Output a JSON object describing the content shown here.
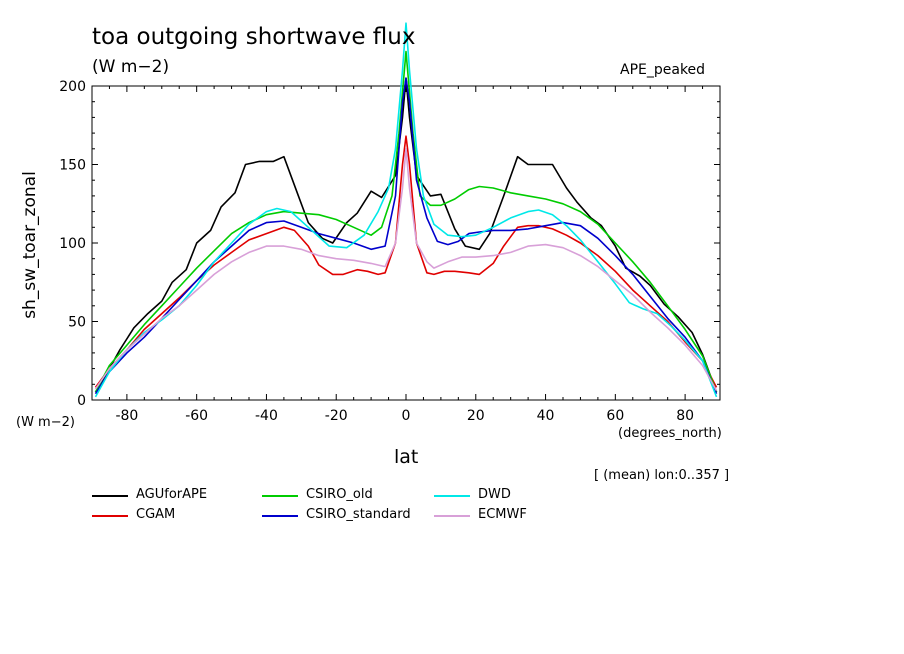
{
  "chart_data": {
    "type": "line",
    "title": "toa outgoing shortwave flux",
    "units": "(W m−2)",
    "experiment": "APE_peaked",
    "xlabel": "lat",
    "xunits": "(degrees_north)",
    "ylabel": "sh_sw_toar_zonal",
    "yunits": "(W m−2)",
    "note": "[ (mean) lon:0..357 ]",
    "xlim": [
      -90,
      90
    ],
    "ylim": [
      0,
      200
    ],
    "xticks": [
      "-80",
      "-60",
      "-40",
      "-20",
      "0",
      "20",
      "40",
      "60",
      "80"
    ],
    "yticks": [
      "0",
      "50",
      "100",
      "150",
      "200"
    ],
    "grid": false,
    "legend_position": "bottom",
    "series": [
      {
        "name": "AGUforAPE",
        "color": "#000000",
        "points": [
          [
            -89,
            5
          ],
          [
            -85,
            20
          ],
          [
            -82,
            32
          ],
          [
            -78,
            46
          ],
          [
            -74,
            55
          ],
          [
            -70,
            63
          ],
          [
            -67,
            75
          ],
          [
            -63,
            83
          ],
          [
            -60,
            100
          ],
          [
            -56,
            108
          ],
          [
            -53,
            123
          ],
          [
            -49,
            132
          ],
          [
            -46,
            150
          ],
          [
            -42,
            152
          ],
          [
            -38,
            152
          ],
          [
            -35,
            155
          ],
          [
            -31,
            131
          ],
          [
            -28,
            113
          ],
          [
            -24,
            103
          ],
          [
            -21,
            100
          ],
          [
            -17,
            113
          ],
          [
            -14,
            119
          ],
          [
            -10,
            133
          ],
          [
            -7,
            129
          ],
          [
            -3,
            143
          ],
          [
            -1,
            180
          ],
          [
            0,
            205
          ],
          [
            1,
            180
          ],
          [
            3,
            143
          ],
          [
            7,
            130
          ],
          [
            10,
            131
          ],
          [
            14,
            109
          ],
          [
            17,
            98
          ],
          [
            21,
            96
          ],
          [
            24,
            106
          ],
          [
            28,
            130
          ],
          [
            32,
            155
          ],
          [
            35,
            150
          ],
          [
            38,
            150
          ],
          [
            42,
            150
          ],
          [
            46,
            135
          ],
          [
            49,
            126
          ],
          [
            53,
            116
          ],
          [
            56,
            111
          ],
          [
            60,
            98
          ],
          [
            63,
            84
          ],
          [
            67,
            79
          ],
          [
            70,
            73
          ],
          [
            74,
            61
          ],
          [
            78,
            53
          ],
          [
            82,
            43
          ],
          [
            85,
            29
          ],
          [
            89,
            5
          ]
        ]
      },
      {
        "name": "CGAM",
        "color": "#e00000",
        "points": [
          [
            -89,
            8
          ],
          [
            -85,
            20
          ],
          [
            -80,
            32
          ],
          [
            -75,
            45
          ],
          [
            -70,
            55
          ],
          [
            -65,
            65
          ],
          [
            -60,
            76
          ],
          [
            -55,
            86
          ],
          [
            -50,
            94
          ],
          [
            -45,
            102
          ],
          [
            -40,
            106
          ],
          [
            -35,
            110
          ],
          [
            -32,
            108
          ],
          [
            -28,
            98
          ],
          [
            -25,
            86
          ],
          [
            -21,
            80
          ],
          [
            -18,
            80
          ],
          [
            -14,
            83
          ],
          [
            -11,
            82
          ],
          [
            -8,
            80
          ],
          [
            -6,
            81
          ],
          [
            -3,
            100
          ],
          [
            -1,
            150
          ],
          [
            0,
            168
          ],
          [
            1,
            150
          ],
          [
            3,
            100
          ],
          [
            6,
            81
          ],
          [
            8,
            80
          ],
          [
            11,
            82
          ],
          [
            14,
            82
          ],
          [
            18,
            81
          ],
          [
            21,
            80
          ],
          [
            25,
            87
          ],
          [
            28,
            98
          ],
          [
            32,
            110
          ],
          [
            35,
            111
          ],
          [
            38,
            111
          ],
          [
            42,
            109
          ],
          [
            46,
            105
          ],
          [
            50,
            100
          ],
          [
            55,
            92
          ],
          [
            60,
            82
          ],
          [
            65,
            70
          ],
          [
            70,
            60
          ],
          [
            75,
            50
          ],
          [
            80,
            37
          ],
          [
            85,
            25
          ],
          [
            89,
            8
          ]
        ]
      },
      {
        "name": "CSIRO_old",
        "color": "#00cc00",
        "points": [
          [
            -89,
            5
          ],
          [
            -85,
            22
          ],
          [
            -80,
            35
          ],
          [
            -75,
            48
          ],
          [
            -70,
            60
          ],
          [
            -65,
            72
          ],
          [
            -60,
            84
          ],
          [
            -55,
            95
          ],
          [
            -50,
            106
          ],
          [
            -45,
            113
          ],
          [
            -40,
            118
          ],
          [
            -35,
            120
          ],
          [
            -30,
            119
          ],
          [
            -25,
            118
          ],
          [
            -20,
            115
          ],
          [
            -15,
            110
          ],
          [
            -10,
            105
          ],
          [
            -7,
            110
          ],
          [
            -4,
            130
          ],
          [
            -2,
            170
          ],
          [
            0,
            222
          ],
          [
            2,
            170
          ],
          [
            4,
            130
          ],
          [
            7,
            124
          ],
          [
            10,
            124
          ],
          [
            14,
            128
          ],
          [
            18,
            134
          ],
          [
            21,
            136
          ],
          [
            25,
            135
          ],
          [
            30,
            132
          ],
          [
            35,
            130
          ],
          [
            40,
            128
          ],
          [
            45,
            125
          ],
          [
            50,
            120
          ],
          [
            55,
            112
          ],
          [
            60,
            100
          ],
          [
            65,
            88
          ],
          [
            70,
            75
          ],
          [
            75,
            60
          ],
          [
            80,
            45
          ],
          [
            85,
            28
          ],
          [
            89,
            5
          ]
        ]
      },
      {
        "name": "CSIRO_standard",
        "color": "#0000cc",
        "points": [
          [
            -89,
            4
          ],
          [
            -85,
            18
          ],
          [
            -80,
            30
          ],
          [
            -75,
            40
          ],
          [
            -70,
            52
          ],
          [
            -65,
            64
          ],
          [
            -60,
            76
          ],
          [
            -55,
            88
          ],
          [
            -50,
            98
          ],
          [
            -45,
            108
          ],
          [
            -40,
            113
          ],
          [
            -35,
            114
          ],
          [
            -30,
            110
          ],
          [
            -25,
            106
          ],
          [
            -20,
            103
          ],
          [
            -15,
            100
          ],
          [
            -10,
            96
          ],
          [
            -6,
            98
          ],
          [
            -3,
            130
          ],
          [
            -1,
            190
          ],
          [
            0,
            205
          ],
          [
            1,
            190
          ],
          [
            3,
            140
          ],
          [
            6,
            116
          ],
          [
            9,
            101
          ],
          [
            12,
            99
          ],
          [
            15,
            101
          ],
          [
            18,
            106
          ],
          [
            21,
            107
          ],
          [
            25,
            108
          ],
          [
            30,
            108
          ],
          [
            35,
            109
          ],
          [
            40,
            111
          ],
          [
            45,
            113
          ],
          [
            50,
            111
          ],
          [
            55,
            103
          ],
          [
            60,
            92
          ],
          [
            65,
            80
          ],
          [
            70,
            66
          ],
          [
            75,
            52
          ],
          [
            80,
            40
          ],
          [
            85,
            25
          ],
          [
            89,
            4
          ]
        ]
      },
      {
        "name": "DWD",
        "color": "#00e8e8",
        "points": [
          [
            -89,
            2
          ],
          [
            -85,
            18
          ],
          [
            -80,
            32
          ],
          [
            -75,
            43
          ],
          [
            -70,
            51
          ],
          [
            -65,
            60
          ],
          [
            -60,
            73
          ],
          [
            -55,
            88
          ],
          [
            -50,
            100
          ],
          [
            -45,
            112
          ],
          [
            -40,
            120
          ],
          [
            -37,
            122
          ],
          [
            -33,
            120
          ],
          [
            -28,
            110
          ],
          [
            -22,
            98
          ],
          [
            -17,
            97
          ],
          [
            -12,
            105
          ],
          [
            -8,
            120
          ],
          [
            -5,
            135
          ],
          [
            -3,
            160
          ],
          [
            -1,
            210
          ],
          [
            0,
            240
          ],
          [
            1,
            210
          ],
          [
            3,
            160
          ],
          [
            5,
            130
          ],
          [
            8,
            112
          ],
          [
            12,
            105
          ],
          [
            16,
            104
          ],
          [
            20,
            105
          ],
          [
            25,
            110
          ],
          [
            30,
            116
          ],
          [
            35,
            120
          ],
          [
            38,
            121
          ],
          [
            42,
            118
          ],
          [
            46,
            111
          ],
          [
            50,
            102
          ],
          [
            55,
            88
          ],
          [
            60,
            74
          ],
          [
            64,
            62
          ],
          [
            68,
            58
          ],
          [
            72,
            55
          ],
          [
            76,
            47
          ],
          [
            80,
            38
          ],
          [
            85,
            25
          ],
          [
            89,
            2
          ]
        ]
      },
      {
        "name": "ECMWF",
        "color": "#d8a0d8",
        "points": [
          [
            -89,
            7
          ],
          [
            -85,
            20
          ],
          [
            -80,
            32
          ],
          [
            -75,
            42
          ],
          [
            -70,
            52
          ],
          [
            -65,
            60
          ],
          [
            -60,
            70
          ],
          [
            -55,
            80
          ],
          [
            -50,
            88
          ],
          [
            -45,
            94
          ],
          [
            -40,
            98
          ],
          [
            -35,
            98
          ],
          [
            -30,
            96
          ],
          [
            -25,
            92
          ],
          [
            -20,
            90
          ],
          [
            -15,
            89
          ],
          [
            -10,
            87
          ],
          [
            -6,
            85
          ],
          [
            -3,
            100
          ],
          [
            -1,
            135
          ],
          [
            0,
            160
          ],
          [
            1,
            135
          ],
          [
            3,
            100
          ],
          [
            6,
            88
          ],
          [
            8,
            84
          ],
          [
            12,
            88
          ],
          [
            16,
            91
          ],
          [
            20,
            91
          ],
          [
            25,
            92
          ],
          [
            30,
            94
          ],
          [
            35,
            98
          ],
          [
            40,
            99
          ],
          [
            45,
            97
          ],
          [
            50,
            92
          ],
          [
            55,
            85
          ],
          [
            60,
            76
          ],
          [
            65,
            67
          ],
          [
            70,
            56
          ],
          [
            75,
            46
          ],
          [
            80,
            35
          ],
          [
            85,
            22
          ],
          [
            89,
            6
          ]
        ]
      }
    ]
  }
}
